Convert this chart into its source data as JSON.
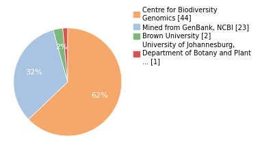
{
  "slices": [
    44,
    23,
    2,
    1
  ],
  "labels": [
    "Centre for Biodiversity\nGenomics [44]",
    "Mined from GenBank, NCBI [23]",
    "Brown University [2]",
    "University of Johannesburg,\nDepartment of Botany and Plant\n... [1]"
  ],
  "colors": [
    "#f5a86a",
    "#a8c4e0",
    "#7cb87c",
    "#d9534f"
  ],
  "startangle": 90,
  "background_color": "#ffffff",
  "text_color": "#ffffff",
  "legend_fontsize": 7.0,
  "autopct_fontsize": 8
}
